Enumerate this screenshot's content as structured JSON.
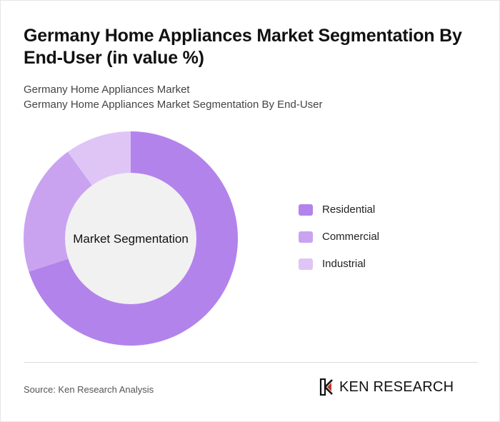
{
  "header": {
    "title": "Germany Home Appliances Market Segmentation By End-User (in value %)",
    "subtitle_line1": "Germany Home Appliances Market",
    "subtitle_line2": "Germany Home Appliances Market Segmentation By End-User"
  },
  "chart_data": {
    "type": "pie",
    "variant": "donut",
    "center_label": "Market Segmentation",
    "categories": [
      "Residential",
      "Commercial",
      "Industrial"
    ],
    "values": [
      70,
      20,
      10
    ],
    "colors": [
      "#b383ec",
      "#c9a3f0",
      "#dfc5f6"
    ],
    "legend_position": "right"
  },
  "footer": {
    "source": "Source: Ken Research Analysis",
    "logo_text": "KEN RESEARCH",
    "logo_icon": "ken-research-logo-icon"
  },
  "colors": {
    "center_fill": "#f1f1f1",
    "divider": "#dcdcdc"
  }
}
